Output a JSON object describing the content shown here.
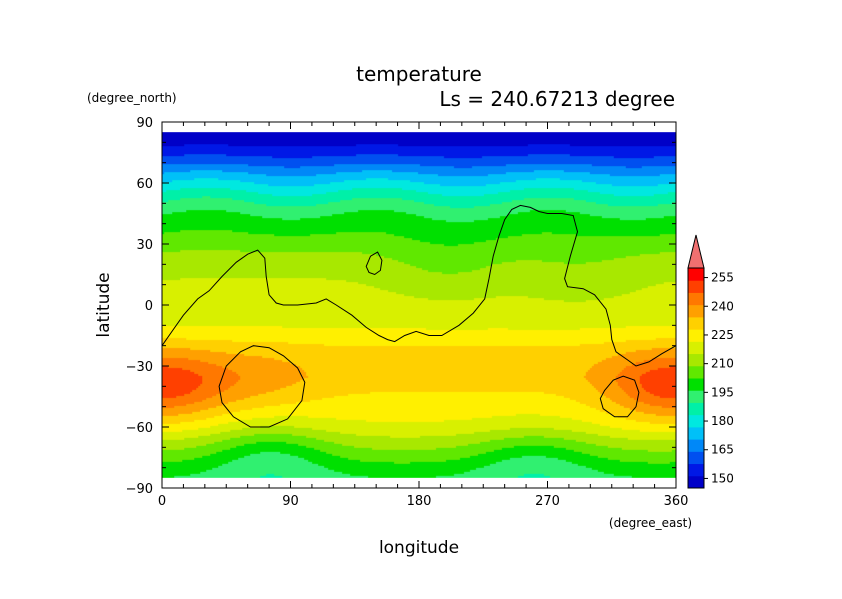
{
  "chart_data": {
    "type": "heatmap",
    "title": "temperature",
    "subtitle": "Ls = 240.67213 degree",
    "xlabel": "longitude",
    "ylabel": "latitude",
    "x_units": "(degree_east)",
    "y_units": "(degree_north)",
    "xlim": [
      0,
      360
    ],
    "ylim": [
      -90,
      90
    ],
    "x_ticks": [
      0,
      90,
      180,
      270,
      360
    ],
    "y_ticks": [
      90,
      60,
      30,
      0,
      -30,
      -60,
      -90
    ],
    "x_tick_labels": [
      "0",
      "90",
      "180",
      "270",
      "360"
    ],
    "y_tick_labels": [
      "90",
      "60",
      "30",
      "0",
      "−30",
      "−60",
      "−90"
    ],
    "colorbar": {
      "tick_values": [
        150,
        165,
        180,
        195,
        210,
        225,
        240,
        255
      ],
      "tick_labels": [
        "150",
        "165",
        "180",
        "195",
        "210",
        "225",
        "240",
        "255"
      ],
      "range": [
        145,
        260
      ],
      "colors": [
        "#0000c8",
        "#0018e6",
        "#0050f0",
        "#0088f8",
        "#00c0f8",
        "#00e8e0",
        "#00f0a8",
        "#30f070",
        "#00e000",
        "#60e800",
        "#a8e800",
        "#d8f000",
        "#fff000",
        "#ffd000",
        "#ffa000",
        "#ff7800",
        "#ff4000",
        "#ff0000"
      ],
      "extend_color": "#f07070"
    },
    "latitudes": [
      85,
      80,
      75,
      70,
      65,
      60,
      55,
      50,
      45,
      40,
      35,
      30,
      25,
      20,
      15,
      10,
      5,
      0,
      -5,
      -10,
      -15,
      -20,
      -25,
      -30,
      -35,
      -40,
      -45,
      -50,
      -55,
      -60,
      -65,
      -70,
      -75,
      -80,
      -85
    ],
    "zonal_mean_temperature": [
      147,
      150,
      156,
      163,
      171,
      178,
      185,
      191,
      196,
      200,
      203,
      207,
      210,
      213,
      215,
      216,
      217,
      218,
      219,
      221,
      224,
      228,
      230,
      231,
      231,
      229,
      227,
      225,
      223,
      220,
      215,
      210,
      205,
      200,
      196
    ],
    "regional_anomalies": [
      {
        "lon": 12,
        "lat": -40,
        "delta": 12
      },
      {
        "lon": 345,
        "lat": -40,
        "delta": 13
      },
      {
        "lon": 70,
        "lat": -38,
        "delta": 6
      },
      {
        "lon": 75,
        "lat": -72,
        "delta": -12
      },
      {
        "lon": 260,
        "lat": -75,
        "delta": -10
      },
      {
        "lon": 200,
        "lat": 20,
        "delta": -6
      },
      {
        "lon": 290,
        "lat": 15,
        "delta": -4
      }
    ],
    "topography_contour": [
      [
        0,
        -20
      ],
      [
        8,
        -12
      ],
      [
        15,
        -5
      ],
      [
        25,
        3
      ],
      [
        33,
        7
      ],
      [
        42,
        14
      ],
      [
        52,
        21
      ],
      [
        60,
        25
      ],
      [
        67,
        27
      ],
      [
        72,
        23
      ],
      [
        73,
        14
      ],
      [
        75,
        5
      ],
      [
        80,
        1
      ],
      [
        85,
        0
      ],
      [
        95,
        0
      ],
      [
        108,
        1
      ],
      [
        115,
        3
      ],
      [
        122,
        0
      ],
      [
        133,
        -5
      ],
      [
        143,
        -11
      ],
      [
        152,
        -15
      ],
      [
        158,
        -17
      ],
      [
        163,
        -18
      ],
      [
        170,
        -15
      ],
      [
        178,
        -13
      ],
      [
        187,
        -15
      ],
      [
        196,
        -15
      ],
      [
        208,
        -10
      ],
      [
        218,
        -4
      ],
      [
        226,
        3
      ],
      [
        229,
        13
      ],
      [
        232,
        24
      ],
      [
        236,
        34
      ],
      [
        240,
        42
      ],
      [
        245,
        47
      ],
      [
        251,
        49
      ],
      [
        258,
        48
      ],
      [
        264,
        46
      ],
      [
        270,
        45
      ],
      [
        280,
        45
      ],
      [
        288,
        44
      ],
      [
        291,
        36
      ],
      [
        286,
        24
      ],
      [
        282,
        13
      ],
      [
        284,
        9
      ],
      [
        295,
        8
      ],
      [
        303,
        5
      ],
      [
        311,
        -2
      ],
      [
        314,
        -10
      ],
      [
        315,
        -17
      ],
      [
        318,
        -23
      ],
      [
        326,
        -27
      ],
      [
        332,
        -30
      ],
      [
        341,
        -28
      ],
      [
        350,
        -24
      ],
      [
        360,
        -20
      ]
    ],
    "topography_island": [
      [
        143,
        19
      ],
      [
        146,
        24
      ],
      [
        151,
        26
      ],
      [
        154,
        22
      ],
      [
        153,
        17
      ],
      [
        149,
        15
      ],
      [
        145,
        16
      ]
    ],
    "basin_contours": [
      [
        [
          40,
          -40
        ],
        [
          45,
          -30
        ],
        [
          55,
          -23
        ],
        [
          64,
          -20
        ],
        [
          75,
          -21
        ],
        [
          85,
          -25
        ],
        [
          95,
          -31
        ],
        [
          100,
          -38
        ],
        [
          98,
          -47
        ],
        [
          88,
          -56
        ],
        [
          75,
          -60
        ],
        [
          62,
          -60
        ],
        [
          50,
          -55
        ],
        [
          42,
          -48
        ]
      ],
      [
        [
          310,
          -42
        ],
        [
          316,
          -37
        ],
        [
          323,
          -35
        ],
        [
          331,
          -37
        ],
        [
          334,
          -43
        ],
        [
          332,
          -50
        ],
        [
          326,
          -55
        ],
        [
          317,
          -55
        ],
        [
          309,
          -51
        ],
        [
          307,
          -46
        ]
      ]
    ]
  }
}
